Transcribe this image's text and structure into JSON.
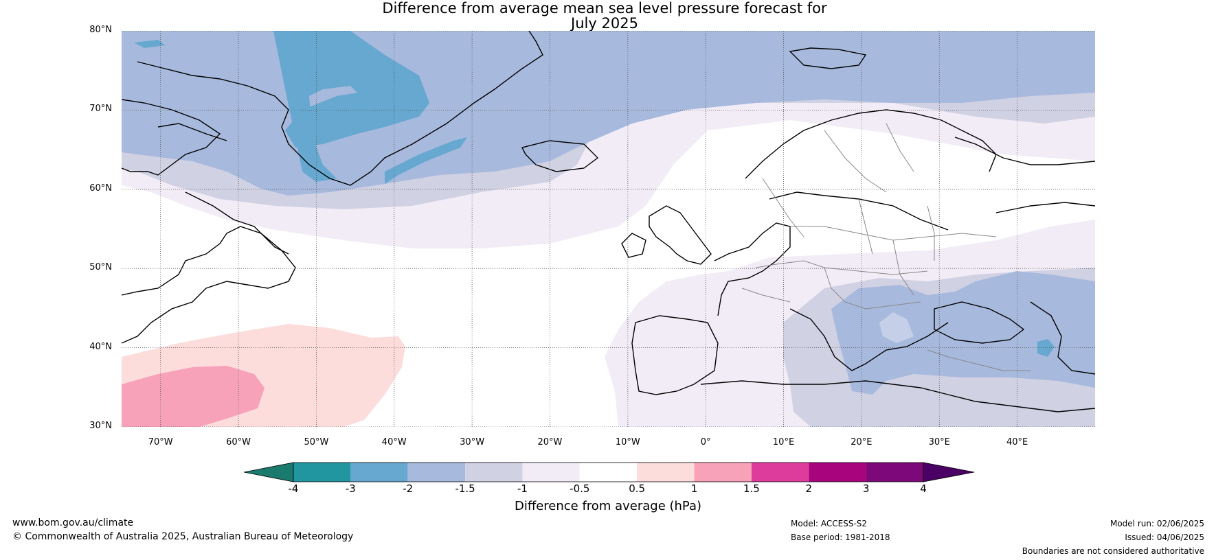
{
  "title": {
    "line1": "Difference from average mean sea level pressure forecast for",
    "line2": "July 2025"
  },
  "map": {
    "latitude_labels": [
      "80°N",
      "70°N",
      "60°N",
      "50°N",
      "40°N",
      "30°N"
    ],
    "longitude_labels": [
      "70°W",
      "60°W",
      "50°W",
      "40°W",
      "30°W",
      "20°W",
      "10°W",
      "0°",
      "10°E",
      "20°E",
      "30°E",
      "40°E"
    ],
    "lat_range": [
      30,
      80
    ],
    "lon_range": [
      -75,
      50
    ],
    "gridlines": true
  },
  "colorbar": {
    "title": "Difference from average (hPa)",
    "tick_labels": [
      "-4",
      "-3",
      "-2",
      "-1.5",
      "-1",
      "-0.5",
      "0.5",
      "1",
      "1.5",
      "2",
      "3",
      "4"
    ],
    "colors": [
      "#1a7a6e",
      "#2196a0",
      "#66a8d0",
      "#a7b9dc",
      "#d1d1e4",
      "#f2ecf6",
      "#ffffff",
      "#fddcdc",
      "#f7a2b9",
      "#de3c9c",
      "#a8047d",
      "#7c0879",
      "#4b0066"
    ]
  },
  "footer": {
    "url": "www.bom.gov.au/climate",
    "copyright": "© Commonwealth of Australia 2025, Australian Bureau of Meteorology",
    "model": "Model: ACCESS-S2",
    "base_period": "Base period: 1981-2018",
    "model_run": "Model run: 02/06/2025",
    "issued": "Issued: 04/06/2025",
    "disclaimer": "Boundaries are not considered authoritative"
  }
}
